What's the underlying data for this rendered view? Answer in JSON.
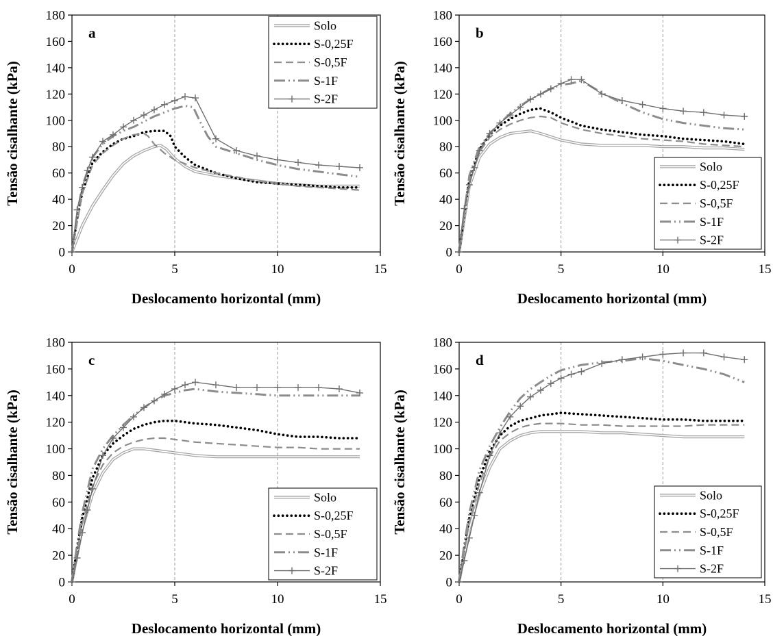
{
  "figure": {
    "xlabel": "Deslocamento horizontal (mm)",
    "ylabel": "Tensão cisalhante (kPa)"
  },
  "series_styles": [
    {
      "name": "Solo",
      "style": "double",
      "color": "#a6a6a6"
    },
    {
      "name": "S-0,25F",
      "style": "dotted",
      "color": "#000000"
    },
    {
      "name": "S-0,5F",
      "style": "dashed",
      "color": "#8c8c8c"
    },
    {
      "name": "S-1F",
      "style": "dashdotdot",
      "color": "#8c8c8c"
    },
    {
      "name": "S-2F",
      "style": "plus",
      "color": "#6e6e6e"
    }
  ],
  "chart_data": [
    {
      "type": "line",
      "label": "a",
      "xlabel": "Deslocamento horizontal (mm)",
      "ylabel": "Tensão cisalhante (kPa)",
      "xlim": [
        0,
        15
      ],
      "ylim": [
        0,
        180
      ],
      "xticks": [
        0,
        5,
        10,
        15
      ],
      "yticks": [
        0,
        20,
        40,
        60,
        80,
        100,
        120,
        140,
        160,
        180
      ],
      "grid": "vertical-dashed",
      "legend": "top-right",
      "series": [
        {
          "name": "Solo",
          "x": [
            0,
            0.25,
            0.5,
            1,
            1.5,
            2,
            2.5,
            3,
            3.5,
            4,
            4.3,
            4.6,
            5,
            5.5,
            6,
            7,
            8,
            9,
            10,
            11,
            12,
            13,
            14
          ],
          "y": [
            0,
            10,
            20,
            35,
            47,
            58,
            67,
            73,
            77,
            80,
            81,
            78,
            71,
            65,
            61,
            58,
            56,
            54,
            52,
            51,
            50,
            50,
            50
          ]
        },
        {
          "name": "S-0,25F",
          "x": [
            0,
            0.25,
            0.5,
            1,
            1.5,
            2,
            2.5,
            3,
            3.5,
            4,
            4.5,
            4.8,
            5,
            5.5,
            6,
            7,
            8,
            9,
            10,
            11,
            12,
            13,
            14
          ],
          "y": [
            0,
            25,
            45,
            68,
            76,
            82,
            86,
            88,
            91,
            92,
            92,
            88,
            80,
            72,
            66,
            60,
            56,
            53,
            52,
            51,
            50,
            49,
            49
          ]
        },
        {
          "name": "S-0,5F",
          "x": [
            0,
            0.25,
            0.5,
            1,
            1.5,
            2,
            2.5,
            3,
            3.5,
            3.7,
            4,
            4.5,
            5,
            6,
            7,
            8,
            9,
            10,
            11,
            12,
            13,
            14
          ],
          "y": [
            0,
            22,
            44,
            66,
            75,
            81,
            86,
            89,
            90,
            88,
            82,
            75,
            70,
            64,
            60,
            57,
            54,
            52,
            50,
            49,
            48,
            47
          ]
        },
        {
          "name": "S-1F",
          "x": [
            0,
            0.25,
            0.5,
            1,
            1.5,
            2,
            2.5,
            3,
            3.5,
            4,
            4.5,
            5,
            5.5,
            5.9,
            6.2,
            6.6,
            7,
            8,
            9,
            10,
            11,
            12,
            13,
            14
          ],
          "y": [
            0,
            28,
            50,
            72,
            82,
            88,
            92,
            95,
            99,
            103,
            106,
            109,
            111,
            110,
            100,
            88,
            80,
            75,
            70,
            66,
            63,
            61,
            59,
            57
          ]
        },
        {
          "name": "S-2F",
          "x": [
            0,
            0.25,
            0.5,
            0.75,
            1,
            1.5,
            2,
            2.5,
            3,
            3.5,
            4,
            4.5,
            5,
            5.5,
            6,
            7,
            8,
            9,
            10,
            11,
            12,
            13,
            14
          ],
          "y": [
            0,
            32,
            49,
            62,
            72,
            84,
            89,
            95,
            100,
            104,
            108,
            112,
            115,
            118,
            117,
            86,
            77,
            73,
            70,
            68,
            66,
            65,
            64
          ]
        }
      ]
    },
    {
      "type": "line",
      "label": "b",
      "xlabel": "Deslocamento horizontal (mm)",
      "ylabel": "Tensão cisalhante (kPa)",
      "xlim": [
        0,
        15
      ],
      "ylim": [
        0,
        180
      ],
      "xticks": [
        0,
        5,
        10,
        15
      ],
      "yticks": [
        0,
        20,
        40,
        60,
        80,
        100,
        120,
        140,
        160,
        180
      ],
      "grid": "vertical-dashed",
      "legend": "bottom-right",
      "series": [
        {
          "name": "Solo",
          "x": [
            0,
            0.25,
            0.5,
            1,
            1.5,
            2,
            2.5,
            3,
            3.5,
            4,
            5,
            6,
            7,
            8,
            9,
            10,
            11,
            12,
            13,
            14
          ],
          "y": [
            0,
            25,
            50,
            72,
            82,
            87,
            90,
            91,
            92,
            90,
            85,
            82,
            81,
            81,
            81,
            80,
            80,
            79,
            79,
            78
          ]
        },
        {
          "name": "S-0,25F",
          "x": [
            0,
            0.25,
            0.5,
            1,
            1.5,
            2,
            2.5,
            3,
            3.5,
            4,
            4.5,
            5,
            6,
            7,
            8,
            9,
            10,
            11,
            12,
            13,
            14
          ],
          "y": [
            0,
            28,
            55,
            78,
            89,
            96,
            101,
            105,
            108,
            109,
            106,
            102,
            96,
            93,
            91,
            89,
            88,
            86,
            85,
            84,
            82
          ]
        },
        {
          "name": "S-0,5F",
          "x": [
            0,
            0.25,
            0.5,
            1,
            1.5,
            2,
            2.5,
            3,
            3.5,
            4,
            4.5,
            5,
            6,
            7,
            8,
            9,
            10,
            11,
            12,
            13,
            14
          ],
          "y": [
            0,
            27,
            53,
            76,
            87,
            93,
            97,
            100,
            102,
            103,
            102,
            98,
            93,
            90,
            88,
            86,
            85,
            84,
            82,
            81,
            80
          ]
        },
        {
          "name": "S-1F",
          "x": [
            0,
            0.25,
            0.5,
            1,
            1.5,
            2,
            2.5,
            3,
            3.5,
            4,
            4.5,
            5,
            5.5,
            6,
            7,
            8,
            9,
            10,
            11,
            12,
            13,
            14
          ],
          "y": [
            0,
            30,
            58,
            80,
            90,
            98,
            105,
            111,
            116,
            120,
            124,
            127,
            128,
            130,
            121,
            113,
            106,
            101,
            98,
            96,
            94,
            93
          ]
        },
        {
          "name": "S-2F",
          "x": [
            0,
            0.25,
            0.5,
            0.75,
            1,
            1.5,
            2,
            2.5,
            3,
            3.5,
            4,
            4.5,
            5,
            5.5,
            6,
            7,
            8,
            9,
            10,
            11,
            12,
            13,
            14
          ],
          "y": [
            0,
            33,
            51,
            64,
            77,
            90,
            98,
            104,
            110,
            116,
            120,
            124,
            128,
            131,
            131,
            120,
            115,
            112,
            109,
            107,
            106,
            104,
            103
          ]
        }
      ]
    },
    {
      "type": "line",
      "label": "c",
      "xlabel": "Deslocamento horizontal (mm)",
      "ylabel": "Tensão cisalhante (kPa)",
      "xlim": [
        0,
        15
      ],
      "ylim": [
        0,
        180
      ],
      "xticks": [
        0,
        5,
        10,
        15
      ],
      "yticks": [
        0,
        20,
        40,
        60,
        80,
        100,
        120,
        140,
        160,
        180
      ],
      "grid": "vertical-dashed",
      "legend": "bottom-right",
      "series": [
        {
          "name": "Solo",
          "x": [
            0,
            0.25,
            0.5,
            1,
            1.5,
            2,
            2.5,
            3,
            3.5,
            4,
            5,
            6,
            7,
            8,
            9,
            10,
            11,
            12,
            13,
            14
          ],
          "y": [
            0,
            20,
            40,
            66,
            82,
            92,
            97,
            100,
            100,
            99,
            97,
            95,
            94,
            94,
            94,
            94,
            94,
            94,
            94,
            94
          ]
        },
        {
          "name": "S-0,25F",
          "x": [
            0,
            0.25,
            0.5,
            1,
            1.5,
            2,
            2.5,
            3,
            3.5,
            4,
            4.5,
            5,
            6,
            7,
            8,
            9,
            10,
            11,
            12,
            13,
            14
          ],
          "y": [
            0,
            25,
            48,
            78,
            95,
            104,
            110,
            115,
            118,
            120,
            121,
            121,
            119,
            118,
            116,
            114,
            111,
            109,
            109,
            108,
            108
          ]
        },
        {
          "name": "S-0,5F",
          "x": [
            0,
            0.25,
            0.5,
            1,
            1.5,
            2,
            2.5,
            3,
            3.5,
            4,
            4.5,
            5,
            6,
            7,
            8,
            9,
            10,
            11,
            12,
            13,
            14
          ],
          "y": [
            0,
            22,
            44,
            72,
            88,
            97,
            102,
            105,
            107,
            108,
            108,
            107,
            105,
            104,
            103,
            102,
            101,
            101,
            100,
            100,
            100
          ]
        },
        {
          "name": "S-1F",
          "x": [
            0,
            0.25,
            0.5,
            1,
            1.5,
            2,
            2.5,
            3,
            3.5,
            4,
            4.5,
            5,
            5.5,
            6,
            7,
            8,
            9,
            10,
            11,
            12,
            13,
            14
          ],
          "y": [
            0,
            28,
            52,
            85,
            100,
            110,
            118,
            125,
            131,
            136,
            140,
            142,
            144,
            145,
            143,
            142,
            141,
            140,
            140,
            140,
            140,
            140
          ]
        },
        {
          "name": "S-2F",
          "x": [
            0,
            0.25,
            0.5,
            0.75,
            1,
            1.5,
            2,
            2.5,
            3,
            3.5,
            4,
            4.5,
            5,
            5.5,
            6,
            7,
            8,
            9,
            10,
            11,
            12,
            13,
            14
          ],
          "y": [
            0,
            18,
            37,
            54,
            70,
            95,
            108,
            116,
            124,
            131,
            136,
            141,
            145,
            148,
            150,
            148,
            146,
            146,
            146,
            146,
            146,
            145,
            142
          ]
        }
      ]
    },
    {
      "type": "line",
      "label": "d",
      "xlabel": "Deslocamento horizontal (mm)",
      "ylabel": "Tensão cisalhante (kPa)",
      "xlim": [
        0,
        15
      ],
      "ylim": [
        0,
        180
      ],
      "xticks": [
        0,
        5,
        10,
        15
      ],
      "yticks": [
        0,
        20,
        40,
        60,
        80,
        100,
        120,
        140,
        160,
        180
      ],
      "grid": "vertical-dashed",
      "legend": "bottom-right",
      "series": [
        {
          "name": "Solo",
          "x": [
            0,
            0.25,
            0.5,
            1,
            1.5,
            2,
            2.5,
            3,
            3.5,
            4,
            5,
            6,
            7,
            8,
            9,
            10,
            11,
            12,
            13,
            14
          ],
          "y": [
            0,
            20,
            40,
            66,
            86,
            100,
            106,
            110,
            112,
            113,
            113,
            113,
            112,
            112,
            111,
            110,
            109,
            109,
            109,
            109
          ]
        },
        {
          "name": "S-0,25F",
          "x": [
            0,
            0.25,
            0.5,
            1,
            1.5,
            2,
            2.5,
            3,
            3.5,
            4,
            4.5,
            5,
            6,
            7,
            8,
            9,
            10,
            11,
            12,
            13,
            14
          ],
          "y": [
            0,
            25,
            48,
            78,
            98,
            110,
            117,
            121,
            123,
            125,
            126,
            127,
            126,
            125,
            124,
            123,
            122,
            122,
            121,
            121,
            121
          ]
        },
        {
          "name": "S-0,5F",
          "x": [
            0,
            0.25,
            0.5,
            1,
            1.5,
            2,
            2.5,
            3,
            3.5,
            4,
            4.5,
            5,
            6,
            7,
            8,
            9,
            10,
            11,
            12,
            13,
            14
          ],
          "y": [
            0,
            22,
            45,
            74,
            94,
            106,
            112,
            116,
            118,
            119,
            119,
            119,
            118,
            118,
            117,
            117,
            117,
            117,
            118,
            118,
            118
          ]
        },
        {
          "name": "S-1F",
          "x": [
            0,
            0.25,
            0.5,
            1,
            1.5,
            2,
            2.5,
            3,
            3.5,
            4,
            4.5,
            5,
            6,
            7,
            8,
            9,
            10,
            11,
            12,
            13,
            14
          ],
          "y": [
            0,
            28,
            52,
            84,
            102,
            116,
            128,
            138,
            145,
            150,
            155,
            159,
            163,
            165,
            166,
            168,
            166,
            163,
            160,
            156,
            150
          ]
        },
        {
          "name": "S-2F",
          "x": [
            0,
            0.25,
            0.5,
            0.75,
            1,
            1.5,
            2,
            2.5,
            3,
            3.5,
            4,
            4.5,
            5,
            5.5,
            6,
            7,
            8,
            9,
            10,
            11,
            12,
            13,
            14
          ],
          "y": [
            0,
            16,
            33,
            50,
            67,
            95,
            112,
            124,
            132,
            139,
            144,
            149,
            153,
            156,
            158,
            164,
            167,
            169,
            171,
            172,
            172,
            169,
            167
          ]
        }
      ]
    }
  ]
}
